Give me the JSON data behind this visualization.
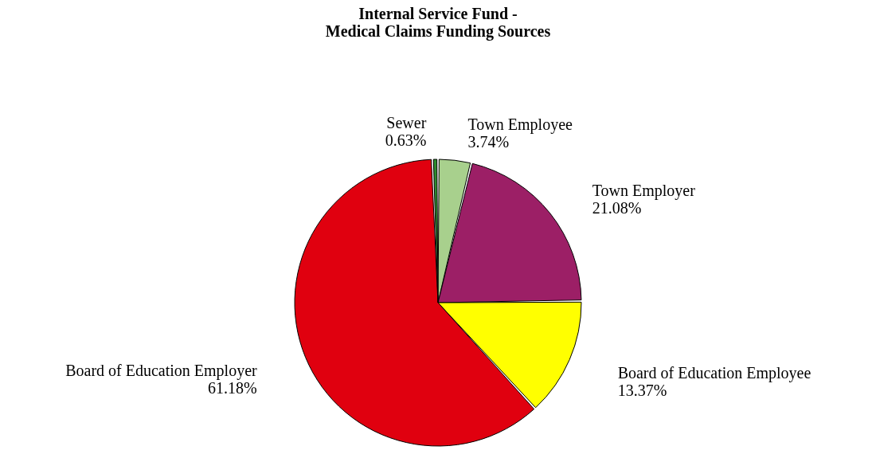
{
  "chart_data": {
    "type": "pie",
    "title": "Internal Service Fund -\nMedical Claims Funding Sources",
    "categories": [
      "Town Employee",
      "Town Employer",
      "Board of Education Employee",
      "Board of Education Employer",
      "Sewer"
    ],
    "values": [
      3.74,
      21.08,
      13.37,
      61.18,
      0.63
    ],
    "value_labels": [
      "3.74%",
      "21.08%",
      "13.37%",
      "61.18%",
      "0.63%"
    ],
    "colors": [
      "#a8d08d",
      "#9c1f66",
      "#ffff00",
      "#e0000f",
      "#2e8b2e"
    ],
    "legend": false
  }
}
